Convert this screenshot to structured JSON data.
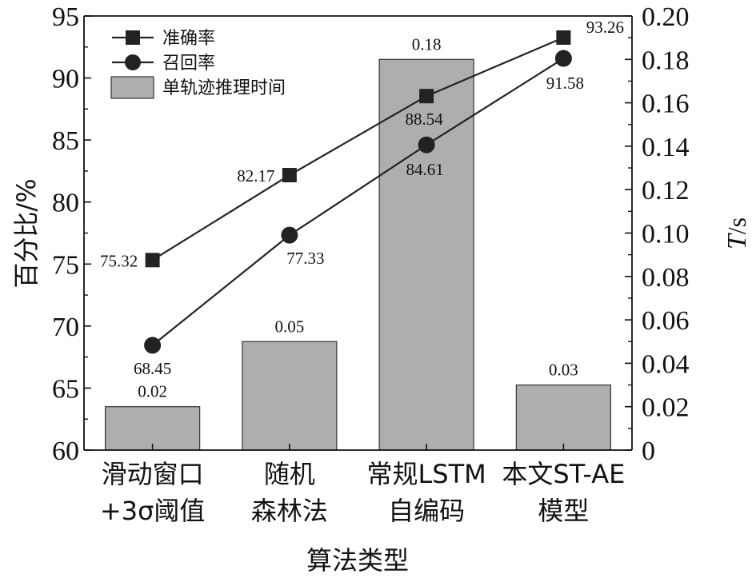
{
  "chart_data": {
    "type": "bar+line",
    "title": "",
    "xlabel": "算法类型",
    "ylabel_left": "百分比/%",
    "ylabel_right": {
      "italic": "T",
      "rest": "/s"
    },
    "categories": [
      [
        "滑动窗口",
        "+3σ阈值"
      ],
      [
        "随机",
        "森林法"
      ],
      [
        "常规LSTM",
        "自编码"
      ],
      [
        "本文ST-AE",
        "模型"
      ]
    ],
    "y_left": {
      "range": [
        60,
        95
      ],
      "ticks": [
        "60",
        "65",
        "70",
        "75",
        "80",
        "85",
        "90",
        "95"
      ]
    },
    "y_right": {
      "range": [
        0,
        0.2
      ],
      "ticks": [
        "0",
        "0.02",
        "0.04",
        "0.06",
        "0.08",
        "0.10",
        "0.12",
        "0.14",
        "0.16",
        "0.18",
        "0.20"
      ]
    },
    "bars": {
      "name": "单轨迹推理时间",
      "axis": "right",
      "values": [
        0.02,
        0.05,
        0.18,
        0.03
      ],
      "labels": [
        "0.02",
        "0.05",
        "0.18",
        "0.03"
      ],
      "color": "#aeaeae"
    },
    "series": [
      {
        "name": "准确率",
        "marker": "square",
        "axis": "left",
        "values": [
          75.32,
          82.17,
          88.54,
          93.26
        ],
        "labels": [
          "75.32",
          "82.17",
          "88.54",
          "93.26"
        ],
        "color": "#222222"
      },
      {
        "name": "召回率",
        "marker": "circle",
        "axis": "left",
        "values": [
          68.45,
          77.33,
          84.61,
          91.58
        ],
        "labels": [
          "68.45",
          "77.33",
          "84.61",
          "91.58"
        ],
        "color": "#222222"
      }
    ],
    "legend": {
      "position": "top-left",
      "entries": [
        "准确率",
        "召回率",
        "单轨迹推理时间"
      ]
    },
    "grid": false
  }
}
